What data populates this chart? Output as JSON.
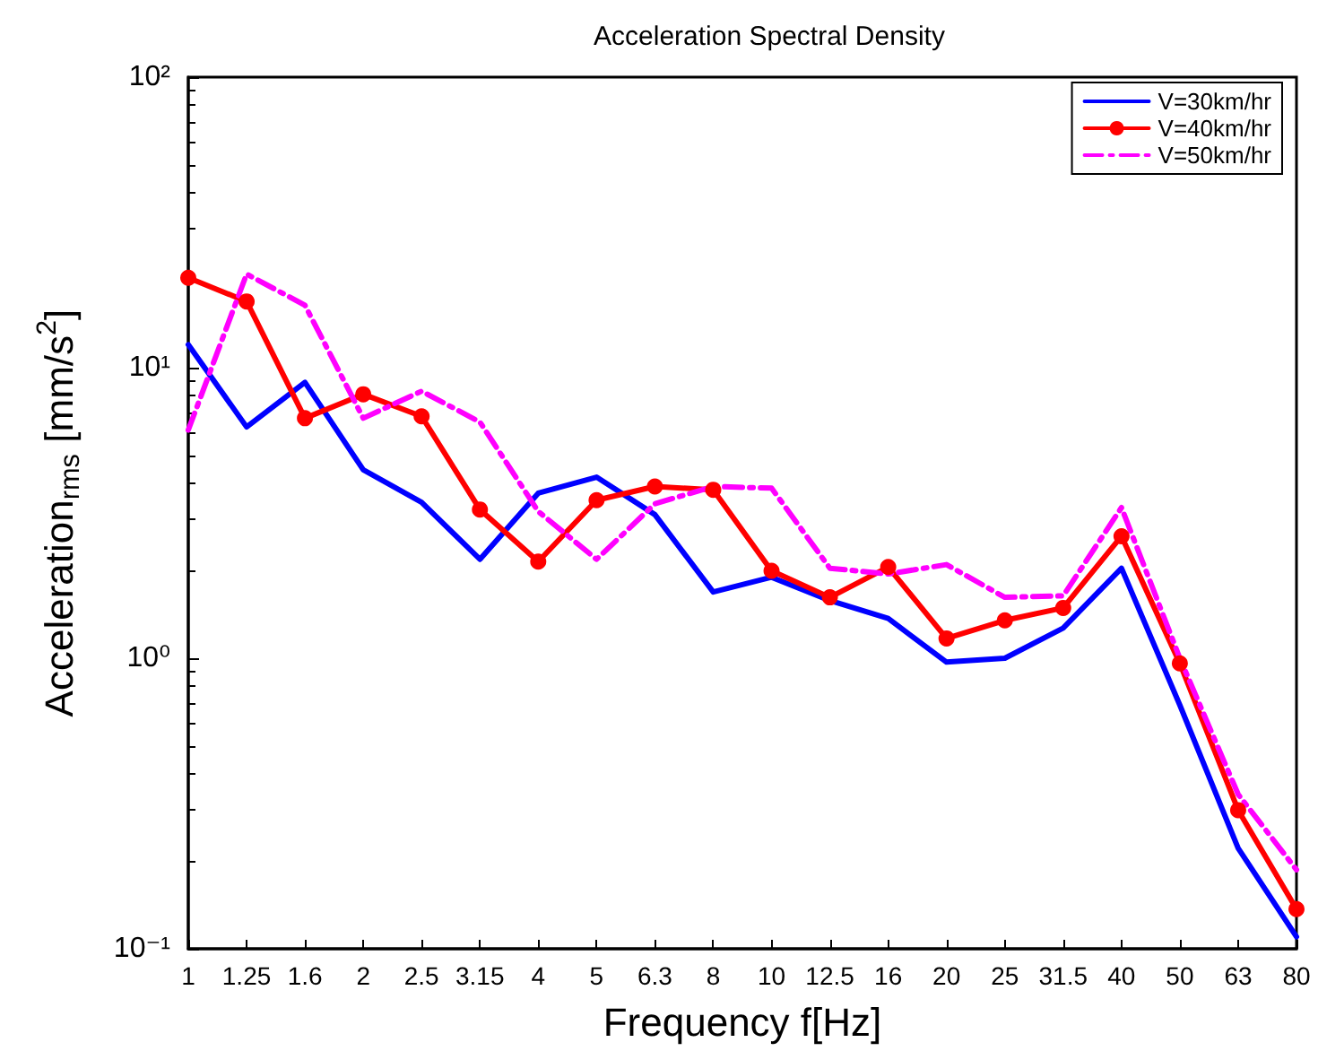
{
  "chart_data": {
    "type": "line",
    "title": "Acceleration Spectral Density",
    "xlabel": "Frequency f[Hz]",
    "ylabel": "Acceleration$_{rms}$ [mm/s$^{2}$]",
    "categories": [
      "1",
      "1.25",
      "1.6",
      "2",
      "2.5",
      "3.15",
      "4",
      "5",
      "6.3",
      "8",
      "10",
      "12.5",
      "16",
      "20",
      "25",
      "31.5",
      "40",
      "50",
      "63",
      "80"
    ],
    "series": [
      {
        "name": "V=30km/hr",
        "color": "#0000ff",
        "marker": "none",
        "line_style": "solid",
        "values": [
          12,
          6.25,
          8.9,
          4.45,
          3.44,
          2.19,
          3.7,
          4.2,
          3.12,
          1.69,
          1.9,
          1.58,
          1.37,
          0.97,
          1.0,
          1.27,
          2.04,
          0.69,
          0.222,
          0.11
        ]
      },
      {
        "name": "V=40km/hr",
        "color": "#ff0000",
        "marker": "circle",
        "line_style": "solid",
        "values": [
          20.4,
          16.9,
          6.7,
          8.1,
          6.8,
          3.25,
          2.15,
          3.5,
          3.9,
          3.8,
          2.0,
          1.62,
          2.06,
          1.17,
          1.35,
          1.49,
          2.63,
          0.96,
          0.3,
          0.137
        ]
      },
      {
        "name": "V=50km/hr",
        "color": "#ff00ff",
        "marker": "none",
        "line_style": "dashed",
        "values": [
          6.1,
          21,
          16.4,
          6.7,
          8.3,
          6.5,
          3.2,
          2.19,
          3.4,
          3.9,
          3.85,
          2.04,
          1.95,
          2.1,
          1.62,
          1.64,
          3.3,
          1.0,
          0.34,
          0.187
        ]
      }
    ],
    "log": "y",
    "ylim": [
      0.1,
      100
    ],
    "yticks": [
      {
        "value": 0.1,
        "label": "10⁻¹"
      },
      {
        "value": 1,
        "label": "10⁰"
      },
      {
        "value": 10,
        "label": "10¹"
      },
      {
        "value": 100,
        "label": "10²"
      }
    ],
    "grid": false,
    "legend": "top right"
  }
}
